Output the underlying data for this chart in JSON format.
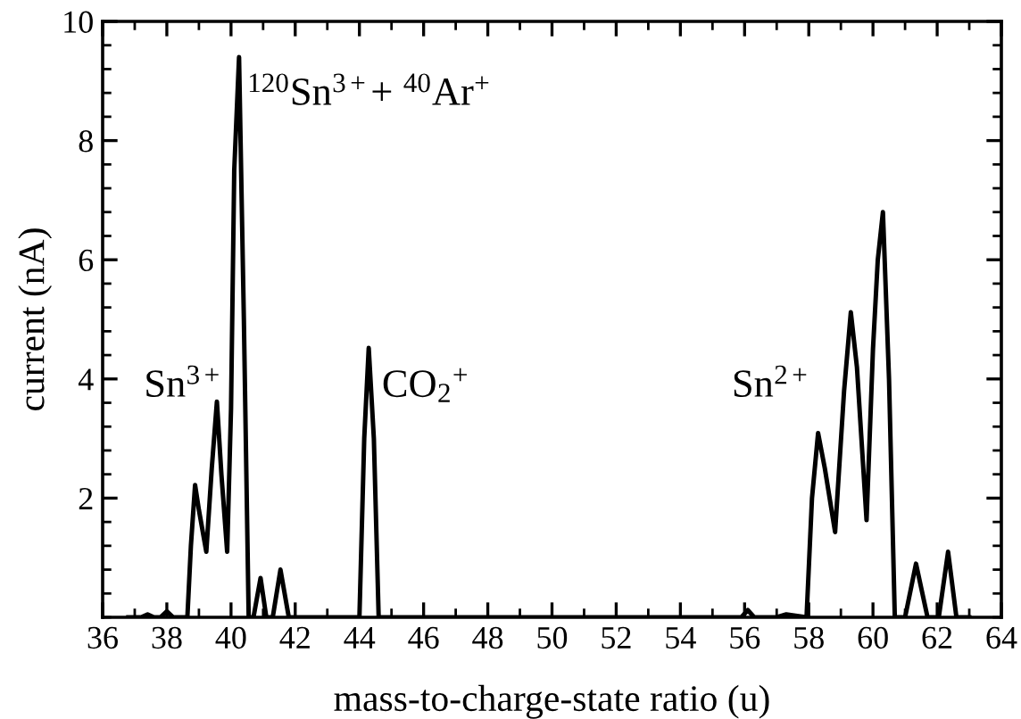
{
  "chart_data": {
    "type": "line",
    "xlabel": "mass-to-charge-state ratio (u)",
    "ylabel": "current (nA)",
    "xlim": [
      36,
      64
    ],
    "ylim": [
      0,
      10
    ],
    "xticks": [
      36,
      38,
      40,
      42,
      44,
      46,
      48,
      50,
      52,
      54,
      56,
      58,
      60,
      62,
      64
    ],
    "yticks": [
      2,
      4,
      6,
      8,
      10
    ],
    "grid": false,
    "marker": "none",
    "line_style": "solid",
    "series": [
      {
        "color": "#000000",
        "x": [
          36.8,
          37.2,
          37.4,
          37.6,
          37.8,
          38.0,
          38.2,
          38.5,
          38.64,
          38.75,
          38.88,
          39.0,
          39.23,
          39.4,
          39.56,
          39.7,
          39.88,
          40.0,
          40.1,
          40.25,
          40.4,
          40.55,
          40.7,
          40.92,
          41.1,
          41.3,
          41.54,
          41.8,
          43.9,
          44.0,
          44.15,
          44.29,
          44.45,
          44.6,
          45.2,
          55.9,
          56.1,
          56.3,
          57.0,
          57.3,
          57.93,
          58.1,
          58.29,
          58.5,
          58.82,
          59.1,
          59.31,
          59.5,
          59.8,
          60.0,
          60.15,
          60.31,
          60.5,
          60.68,
          61.0,
          61.34,
          61.7,
          62.05,
          62.34,
          62.6,
          63.0
        ],
        "values": [
          0,
          0,
          0.05,
          0,
          0,
          0.1,
          0,
          0,
          0,
          1.2,
          2.22,
          1.8,
          1.1,
          2.5,
          3.62,
          2.4,
          1.1,
          3.5,
          7.5,
          9.4,
          5.0,
          0,
          0,
          0.66,
          0,
          0,
          0.8,
          0,
          0,
          0,
          3.0,
          4.52,
          3.0,
          0,
          0,
          0,
          0.12,
          0,
          0,
          0.05,
          0,
          2.0,
          3.09,
          2.5,
          1.43,
          3.8,
          5.12,
          4.2,
          1.63,
          4.5,
          6.0,
          6.8,
          4.0,
          0,
          0,
          0.9,
          0,
          0,
          1.1,
          0,
          0
        ]
      }
    ],
    "annotations": [
      {
        "text": "$^{120}$Sn$^{3+}$+ $^{40}$Ar$^{+}$",
        "x": 40.5,
        "y": 8.6
      },
      "Sn$^{3+}$",
      {
        "text": "CO$_{2}$$^{+}$",
        "x": 44.7,
        "y": 3.7
      },
      "Sn$^{2+}$"
    ]
  }
}
